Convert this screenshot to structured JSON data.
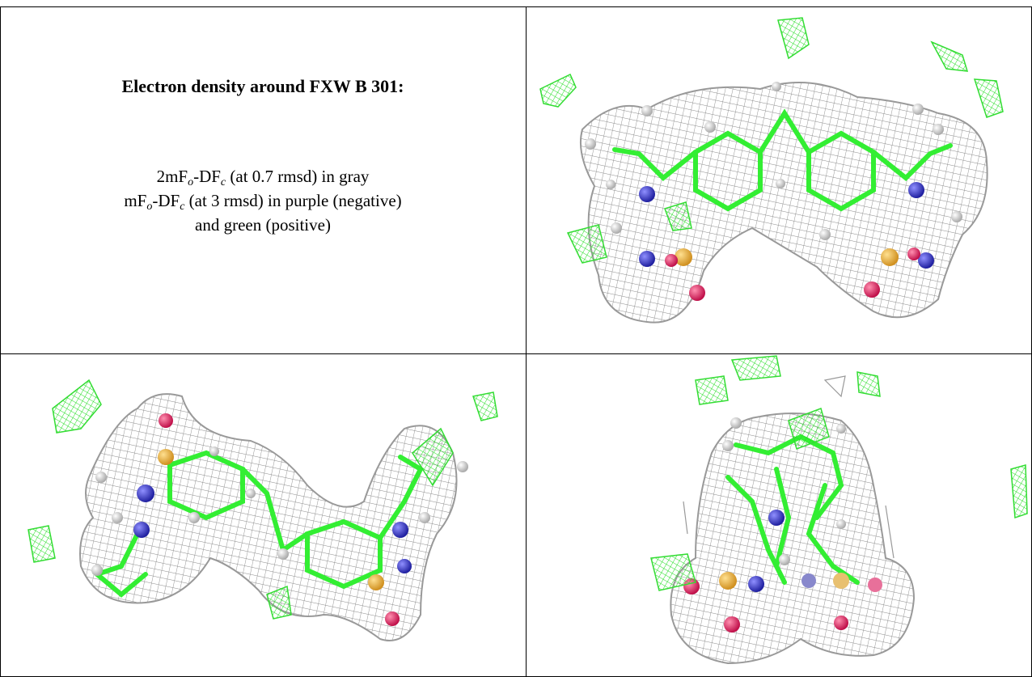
{
  "title": "Electron density around FXW B 301:",
  "description_lines": [
    {
      "parts": [
        "2mF",
        "o",
        "-DF",
        "c",
        " (at 0.7 rmsd) in gray"
      ]
    },
    {
      "parts": [
        "mF",
        "o",
        "-DF",
        "c",
        " (at 3 rmsd) in purple (negative)"
      ]
    },
    {
      "parts": [
        "and green (positive)"
      ]
    }
  ]
}
